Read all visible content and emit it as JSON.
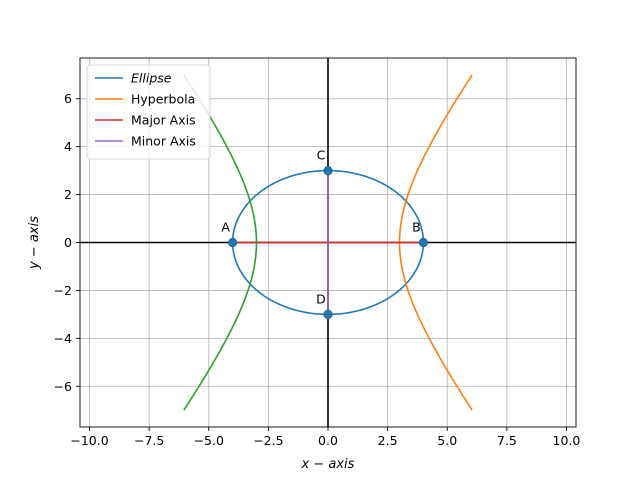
{
  "chart_data": {
    "type": "line",
    "xlabel": "x − axis",
    "ylabel": "y − axis",
    "xlim": [
      -10.4,
      10.4
    ],
    "ylim": [
      -7.7,
      7.7
    ],
    "x_ticks": [
      -10.0,
      -7.5,
      -5.0,
      -2.5,
      0.0,
      2.5,
      5.0,
      7.5,
      10.0
    ],
    "x_tick_labels": [
      "−10.0",
      "−7.5",
      "−5.0",
      "−2.5",
      "0.0",
      "2.5",
      "5.0",
      "7.5",
      "10.0"
    ],
    "y_ticks": [
      -6,
      -4,
      -2,
      0,
      2,
      4,
      6
    ],
    "y_tick_labels": [
      "−6",
      "−4",
      "−2",
      "0",
      "2",
      "4",
      "6"
    ],
    "grid": true,
    "legend_position": "top-left",
    "ellipse": {
      "a": 4,
      "b": 3
    },
    "hyperbola": {
      "vertex_right": 3,
      "vertex_left": 3,
      "y_range": [
        -7,
        7
      ]
    },
    "series": [
      {
        "name": "Ellipse",
        "color": "#1f77b4",
        "italic": true,
        "in_legend": true,
        "kind": "ellipse"
      },
      {
        "name": "Hyperbola",
        "color": "#ff7f0e",
        "italic": false,
        "in_legend": true,
        "kind": "hyperbola-right"
      },
      {
        "name": "Major Axis",
        "color": "#d62728",
        "italic": false,
        "in_legend": true,
        "kind": "segment",
        "x": [
          -4,
          4
        ],
        "y": [
          0,
          0
        ]
      },
      {
        "name": "Minor Axis",
        "color": "#9467bd",
        "italic": false,
        "in_legend": true,
        "kind": "segment",
        "x": [
          0,
          0
        ],
        "y": [
          -3,
          3
        ]
      },
      {
        "name": "",
        "color": "#2ca02c",
        "italic": false,
        "in_legend": false,
        "kind": "hyperbola-left"
      }
    ],
    "points": [
      {
        "label": "A",
        "x": -4,
        "y": 0,
        "label_pos": "upper-left"
      },
      {
        "label": "B",
        "x": 4,
        "y": 0,
        "label_pos": "upper-left"
      },
      {
        "label": "C",
        "x": 0,
        "y": 3,
        "label_pos": "upper-left"
      },
      {
        "label": "D",
        "x": 0,
        "y": -3,
        "label_pos": "upper-left"
      }
    ],
    "point_color": "#1f77b4"
  }
}
